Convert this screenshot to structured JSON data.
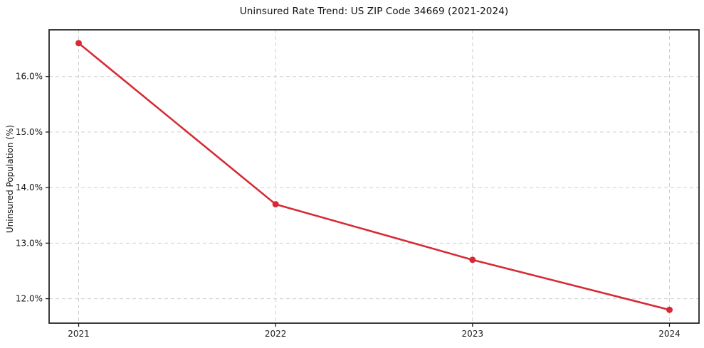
{
  "chart_data": {
    "type": "line",
    "title": "Uninsured Rate Trend: US ZIP Code 34669 (2021-2024)",
    "xlabel": "",
    "ylabel": "Uninsured Population (%)",
    "x": [
      2021,
      2022,
      2023,
      2024
    ],
    "values": [
      16.6,
      13.7,
      12.7,
      11.8
    ],
    "x_tick_labels": [
      "2021",
      "2022",
      "2023",
      "2024"
    ],
    "y_ticks": [
      12,
      13,
      14,
      15,
      16
    ],
    "y_tick_labels": [
      "12.0%",
      "13.0%",
      "14.0%",
      "15.0%",
      "16.0%"
    ],
    "xlim": [
      2020.85,
      2024.15
    ],
    "ylim": [
      11.56,
      16.84
    ],
    "grid": "both-dashed",
    "legend": "none",
    "line_color": "#d62b35",
    "marker": "circle",
    "grid_color": "#cdcdcd",
    "frame_color": "#1a1a1a",
    "background_color": "#ffffff"
  }
}
